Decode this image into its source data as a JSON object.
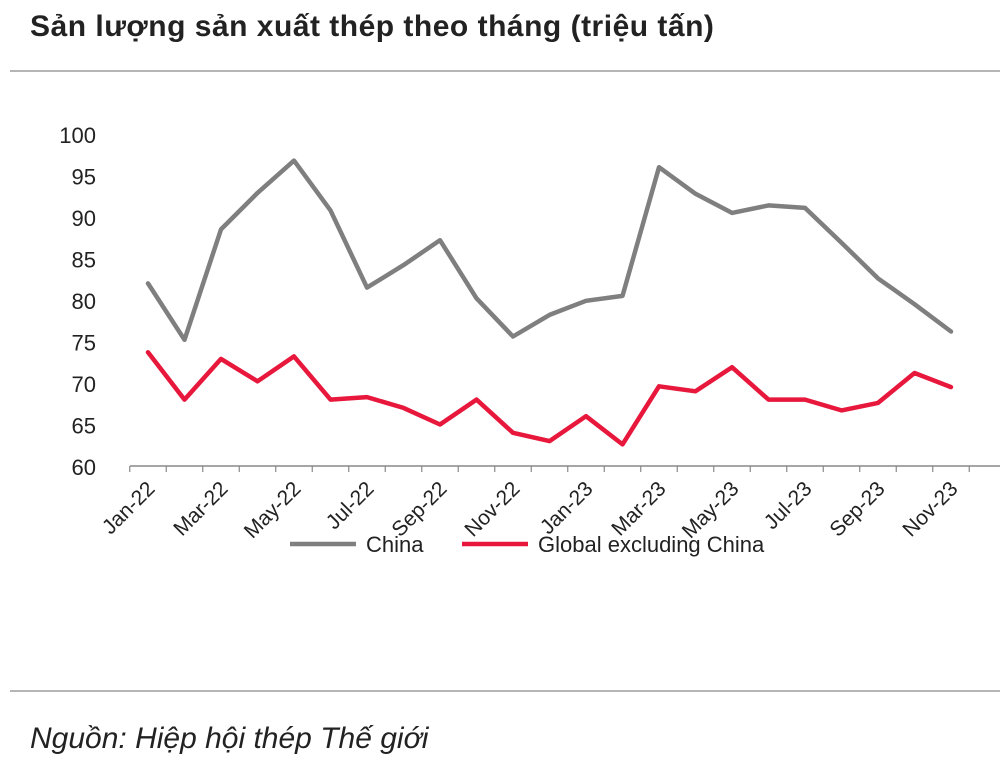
{
  "title": "Sản lượng sản xuất thép theo tháng (triệu tấn)",
  "source": "Nguồn: Hiệp hội thép Thế giới",
  "chart_data": {
    "type": "line",
    "title": "Sản lượng sản xuất thép theo tháng (triệu tấn)",
    "xlabel": "",
    "ylabel": "",
    "ylim": [
      60,
      100
    ],
    "yticks": [
      60,
      65,
      70,
      75,
      80,
      85,
      90,
      95,
      100
    ],
    "categories": [
      "Jan-22",
      "Feb-22",
      "Mar-22",
      "Apr-22",
      "May-22",
      "Jun-22",
      "Jul-22",
      "Aug-22",
      "Sep-22",
      "Oct-22",
      "Nov-22",
      "Dec-22",
      "Jan-23",
      "Feb-23",
      "Mar-23",
      "Apr-23",
      "May-23",
      "Jun-23",
      "Jul-23",
      "Aug-23",
      "Sep-23",
      "Oct-23",
      "Nov-23",
      "Dec-23"
    ],
    "tick_labels": [
      "Jan-22",
      "Mar-22",
      "May-22",
      "Jul-22",
      "Sep-22",
      "Nov-22",
      "Jan-23",
      "Mar-23",
      "May-23",
      "Jul-23",
      "Sep-23",
      "Nov-23"
    ],
    "grid": false,
    "legend_position": "bottom",
    "series": [
      {
        "name": "China",
        "color": "#7f7f7f",
        "values": [
          82.0,
          75.2,
          88.5,
          92.9,
          96.8,
          90.8,
          81.5,
          84.2,
          87.2,
          80.2,
          75.6,
          78.2,
          79.9,
          80.5,
          96.0,
          92.8,
          90.5,
          91.4,
          91.1,
          86.9,
          82.6,
          79.5,
          76.2,
          null
        ]
      },
      {
        "name": "Global excluding China",
        "color": "#e8173c",
        "values": [
          73.7,
          68.0,
          72.9,
          70.2,
          73.2,
          68.0,
          68.3,
          67.0,
          65.0,
          68.0,
          64.0,
          63.0,
          66.0,
          62.6,
          69.6,
          69.0,
          71.9,
          68.0,
          68.0,
          66.7,
          67.6,
          71.2,
          69.5,
          null
        ]
      }
    ]
  }
}
